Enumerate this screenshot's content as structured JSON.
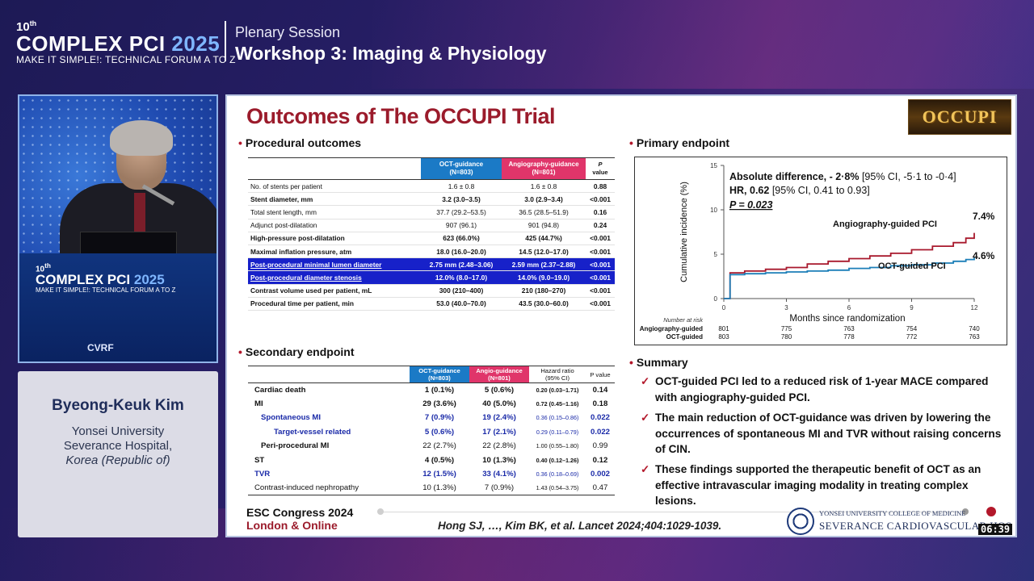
{
  "header": {
    "edition": "10",
    "edition_suffix": "th",
    "brand_word": "COMPLEX PCI",
    "brand_year": "2025",
    "tagline": "MAKE IT SIMPLE!: TECHNICAL FORUM A TO Z",
    "session_label": "Plenary Session",
    "session_title": "Workshop 3: Imaging & Physiology"
  },
  "video": {
    "podium_edition": "10",
    "podium_edition_suffix": "th",
    "podium_brand": "COMPLEX PCI",
    "podium_year": "2025",
    "podium_tagline": "MAKE IT SIMPLE!: TECHNICAL FORUM A TO Z",
    "podium_logo": "CVRF"
  },
  "speaker": {
    "name": "Byeong-Keuk Kim",
    "line1": "Yonsei University",
    "line2": "Severance Hospital,",
    "line3": "Korea (Republic of)"
  },
  "slide": {
    "title": "Outcomes of The OCCUPI Trial",
    "badge": "OCCUPI",
    "procedural": {
      "heading": "Procedural outcomes",
      "col_oct": "OCT-guidance",
      "col_oct_n": "(N=803)",
      "col_ang": "Angiography-guidance",
      "col_ang_n": "(N=801)",
      "col_p": "P",
      "col_p2": "value",
      "rows": [
        {
          "label": "No. of stents per patient",
          "oct": "1.6 ± 0.8",
          "ang": "1.6 ± 0.8",
          "p": "0.88"
        },
        {
          "label": "Stent diameter, mm",
          "oct": "3.2 (3.0–3.5)",
          "ang": "3.0 (2.9–3.4)",
          "p": "<0.001"
        },
        {
          "label": "Total stent length, mm",
          "oct": "37.7 (29.2–53.5)",
          "ang": "36.5 (28.5–51.9)",
          "p": "0.16"
        },
        {
          "label": "Adjunct post-dilatation",
          "oct": "907 (96.1)",
          "ang": "901 (94.8)",
          "p": "0.24"
        },
        {
          "label": "High-pressure post-dilatation",
          "oct": "623 (66.0%)",
          "ang": "425 (44.7%)",
          "p": "<0.001"
        },
        {
          "label": "Maximal inflation pressure, atm",
          "oct": "18.0 (16.0–20.0)",
          "ang": "14.5 (12.0–17.0)",
          "p": "<0.001"
        },
        {
          "label": "Post-procedural minimal lumen diameter",
          "oct": "2.75 mm (2.48–3.06)",
          "ang": "2.59 mm (2.37–2.88)",
          "p": "<0.001"
        },
        {
          "label": "Post-procedural diameter stenosis",
          "oct": "12.0% (8.0–17.0)",
          "ang": "14.0% (9.0–19.0)",
          "p": "<0.001"
        },
        {
          "label": "Contrast volume used per patient, mL",
          "oct": "300 (210–400)",
          "ang": "210 (180–270)",
          "p": "<0.001"
        },
        {
          "label": "Procedural time per patient, min",
          "oct": "53.0 (40.0–70.0)",
          "ang": "43.5 (30.0–60.0)",
          "p": "<0.001"
        }
      ]
    },
    "secondary": {
      "heading": "Secondary endpoint",
      "col_oct": "OCT-guidance",
      "col_oct_n": "(N=803)",
      "col_ang": "Angio-guidance",
      "col_ang_n": "(N=801)",
      "col_hr": "Hazard ratio",
      "col_hr2": "(95% CI)",
      "col_p": "P value",
      "rows": [
        {
          "label": "Cardiac death",
          "oct": "1 (0.1%)",
          "ang": "5 (0.6%)",
          "hr": "0.20 (0.03–1.71)",
          "p": "0.14"
        },
        {
          "label": "MI",
          "oct": "29 (3.6%)",
          "ang": "40 (5.0%)",
          "hr": "0.72 (0.45–1.16)",
          "p": "0.18"
        },
        {
          "label": "Spontaneous MI",
          "oct": "7 (0.9%)",
          "ang": "19 (2.4%)",
          "hr": "0.36 (0.15–0.86)",
          "p": "0.022"
        },
        {
          "label": "Target-vessel related",
          "oct": "5 (0.6%)",
          "ang": "17 (2.1%)",
          "hr": "0.29 (0.11–0.79)",
          "p": "0.022"
        },
        {
          "label": "Peri-procedural MI",
          "oct": "22 (2.7%)",
          "ang": "22 (2.8%)",
          "hr": "1.00 (0.55–1.80)",
          "p": "0.99"
        },
        {
          "label": "ST",
          "oct": "4 (0.5%)",
          "ang": "10 (1.3%)",
          "hr": "0.40 (0.12–1.26)",
          "p": "0.12"
        },
        {
          "label": "TVR",
          "oct": "12 (1.5%)",
          "ang": "33 (4.1%)",
          "hr": "0.36 (0.18–0.69)",
          "p": "0.002"
        },
        {
          "label": "Contrast-induced nephropathy",
          "oct": "10 (1.3%)",
          "ang": "7 (0.9%)",
          "hr": "1.43 (0.54–3.75)",
          "p": "0.47"
        }
      ]
    },
    "primary": {
      "heading": "Primary endpoint",
      "abs_diff_bold": "Absolute difference, - 2·8%",
      "abs_diff_ci": "[95% CI, -5·1 to -0·4]",
      "hr_bold": "HR, 0.62",
      "hr_ci": "[95% CI, 0.41 to 0.93]",
      "p_text": "P = 0.023",
      "angio_label": "Angiography-guided PCI",
      "oct_label": "OCT-guided PCI",
      "angio_end": "7.4%",
      "oct_end": "4.6%",
      "number_at_risk": "Number at risk",
      "risk_row_angio": "Angiography-guided",
      "risk_row_oct": "OCT-guided"
    },
    "summary": {
      "heading": "Summary",
      "items": [
        "OCT-guided PCI led to a reduced risk of 1-year MACE compared with angiography-guided PCI.",
        "The main reduction of OCT-guidance was driven by lowering the occurrences of spontaneous MI and TVR without raising concerns of CIN.",
        "These findings supported the therapeutic benefit of OCT as an effective intravascular imaging modality in treating complex lesions."
      ]
    },
    "footer": {
      "congress": "ESC Congress 2024",
      "location": "London & Online",
      "reference": "Hong SJ, …, Kim BK, et al. Lancet 2024;404:1029-1039.",
      "yonsei_line1": "YONSEI UNIVERSITY COLLEGE OF MEDICINE",
      "yonsei_line2": "SEVERANCE CARDIOVASCULAR HOS",
      "clock": "06:39"
    }
  },
  "chart_data": {
    "type": "line",
    "title": "",
    "xlabel": "Months since randomization",
    "ylabel": "Cumulative incidence (%)",
    "xlim": [
      0,
      12
    ],
    "ylim": [
      0,
      15
    ],
    "x_ticks": [
      0,
      3,
      6,
      9,
      12
    ],
    "y_ticks": [
      0,
      5,
      10,
      15
    ],
    "series": [
      {
        "name": "Angiography-guided PCI",
        "color": "#a8182c",
        "x": [
          0,
          0.3,
          1,
          2,
          3,
          4,
          5,
          6,
          7,
          8,
          9,
          10,
          11,
          11.6,
          12
        ],
        "y": [
          0,
          2.9,
          3.1,
          3.3,
          3.5,
          3.9,
          4.2,
          4.5,
          4.8,
          5.1,
          5.5,
          5.9,
          6.3,
          6.8,
          7.4
        ]
      },
      {
        "name": "OCT-guided PCI",
        "color": "#1c7fb8",
        "x": [
          0,
          0.3,
          1,
          2,
          3,
          4,
          5,
          6,
          7,
          8,
          9,
          10,
          11,
          11.6,
          12
        ],
        "y": [
          0,
          2.7,
          2.8,
          2.9,
          3.0,
          3.1,
          3.2,
          3.4,
          3.5,
          3.7,
          3.8,
          4.0,
          4.2,
          4.4,
          4.6
        ]
      }
    ],
    "risk_table": {
      "months": [
        0,
        3,
        6,
        9,
        12
      ],
      "angio": [
        "801",
        "775",
        "763",
        "754",
        "740"
      ],
      "oct": [
        "803",
        "780",
        "778",
        "772",
        "763"
      ]
    }
  }
}
